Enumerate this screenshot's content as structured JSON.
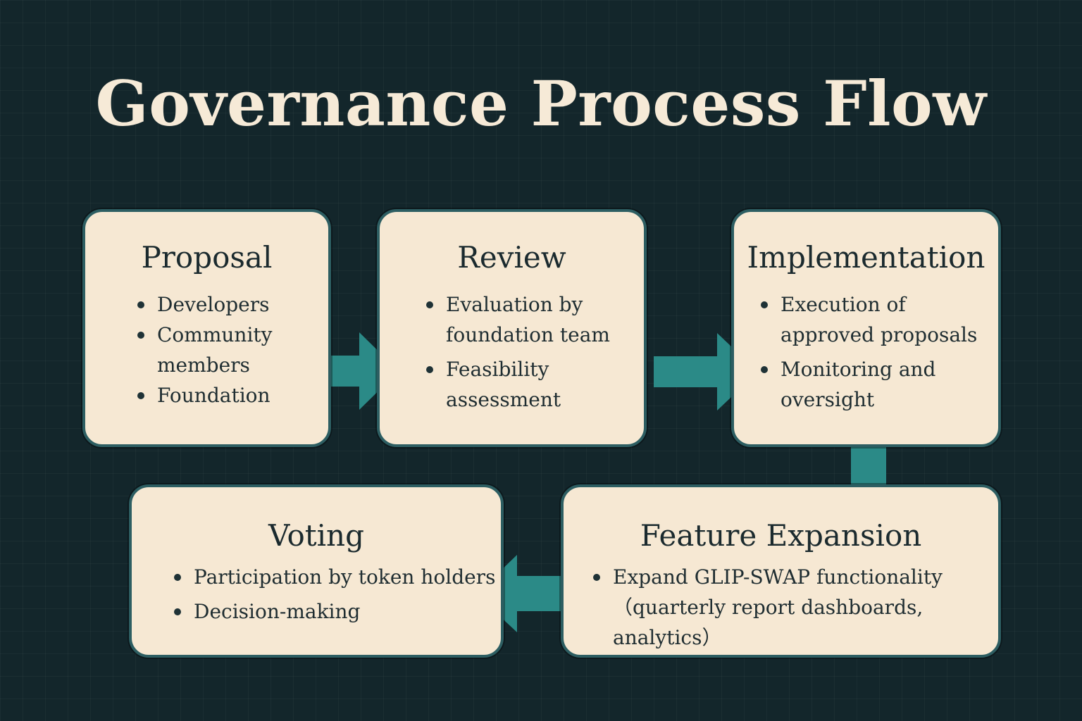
{
  "title": "Governance Process Flow",
  "colors": {
    "background": "#13262b",
    "box_fill": "#f6e8d3",
    "box_border": "#2d5e62",
    "arrow": "#2b8a87",
    "title_text": "#f6ead7"
  },
  "steps": [
    {
      "heading": "Proposal",
      "items": [
        "Developers",
        "Community members",
        "Foundation"
      ]
    },
    {
      "heading": "Review",
      "items": [
        "Evaluation by foundation team",
        "Feasibility assessment"
      ]
    },
    {
      "heading": "Implementation",
      "items": [
        "Execution of approved proposals",
        "Monitoring and oversight"
      ]
    },
    {
      "heading": "Feature Expansion",
      "items": [
        "Expand GLIP-SWAP functionality（quarterly report dashboards, analytics）"
      ]
    },
    {
      "heading": "Voting",
      "items": [
        "Participation by token holders",
        "Decision-making"
      ]
    }
  ],
  "connections": [
    {
      "from": "Proposal",
      "to": "Review"
    },
    {
      "from": "Review",
      "to": "Implementation"
    },
    {
      "from": "Implementation",
      "to": "Feature Expansion"
    },
    {
      "from": "Feature Expansion",
      "to": "Voting"
    }
  ]
}
